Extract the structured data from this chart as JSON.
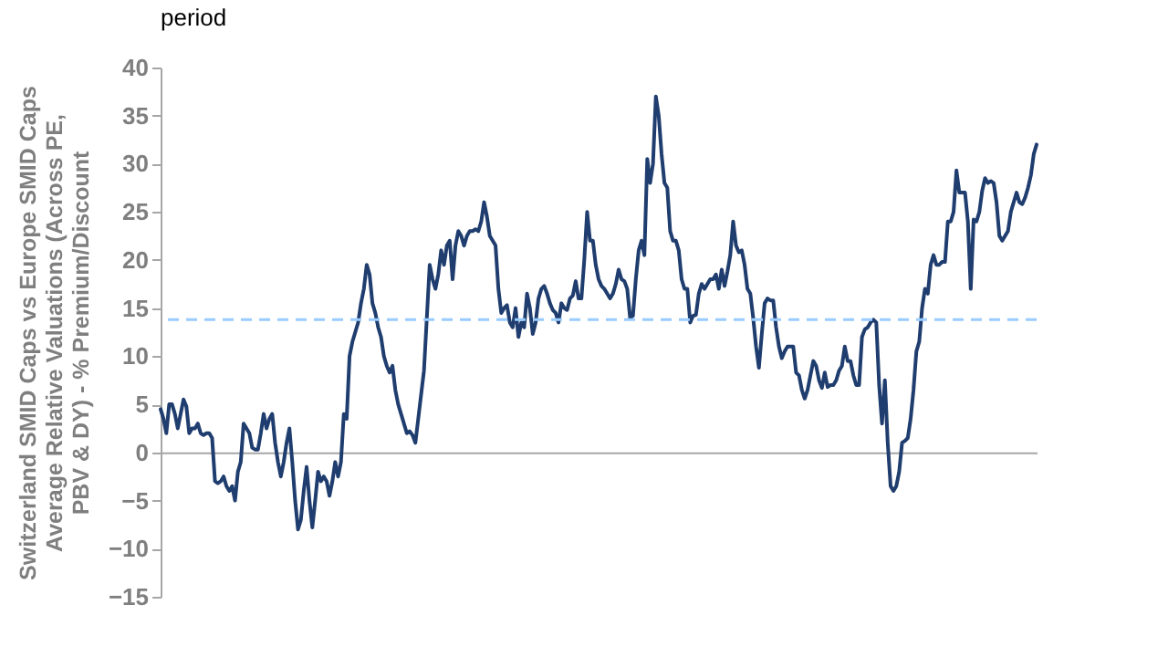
{
  "chart_data": {
    "type": "line",
    "title": "period",
    "ylabel": "Switzerland SMID Caps vs Europe SMID Caps Average Relative Valuations (Across PE, PBV & DY) - % Premium/Discount",
    "categories": [
      null,
      null,
      null,
      null,
      null,
      null,
      null,
      null,
      null,
      null,
      null,
      null,
      null,
      null,
      null,
      null,
      null,
      null,
      null,
      null,
      null,
      null,
      null,
      null,
      null,
      null,
      null,
      null,
      null,
      null,
      null,
      null,
      null,
      null,
      null,
      null,
      null,
      null,
      null,
      null,
      null,
      null,
      null,
      null,
      null,
      null,
      null,
      null,
      null,
      null,
      null,
      null,
      null,
      null,
      null,
      null,
      null,
      null,
      null,
      null,
      null,
      null,
      null,
      null,
      null,
      null,
      null,
      null,
      null,
      null,
      null,
      null,
      null,
      null,
      null,
      null,
      null,
      null,
      null,
      null,
      null,
      null,
      null,
      null,
      null,
      null,
      null,
      null,
      null,
      null,
      null,
      null,
      null,
      null,
      null,
      null,
      null,
      null,
      null,
      null,
      null,
      null,
      null,
      null,
      null,
      null,
      null,
      null,
      null,
      null,
      null,
      null,
      null,
      null,
      null,
      null,
      null,
      null,
      null,
      null,
      null,
      null,
      null,
      null,
      null,
      null,
      null,
      null,
      null,
      null,
      null,
      null,
      null,
      null,
      null,
      null,
      null,
      null,
      null,
      null,
      null,
      null,
      null,
      null,
      null,
      null,
      null,
      null,
      null,
      null,
      null,
      null,
      null,
      null,
      null,
      null,
      null,
      null,
      null,
      null,
      null,
      null,
      null,
      null,
      null,
      null,
      null,
      null,
      null,
      null,
      null,
      null,
      null,
      null,
      null,
      null,
      null,
      null,
      null,
      null,
      null,
      null,
      null,
      null,
      null,
      null,
      null,
      null,
      null,
      null,
      null,
      null,
      null,
      null,
      null,
      null,
      null,
      null,
      null,
      null,
      null,
      null,
      null,
      null,
      null,
      null,
      null,
      null,
      null,
      null,
      null,
      null,
      null,
      null,
      null,
      null,
      null,
      null,
      null,
      null,
      null,
      null,
      null,
      null,
      null,
      null,
      null,
      null,
      null,
      null,
      null,
      null,
      null,
      null,
      null,
      null,
      null,
      null,
      null,
      null,
      null,
      null,
      null,
      null,
      null,
      null,
      null,
      null,
      null,
      null,
      null,
      null,
      null,
      null,
      null,
      null,
      null,
      null,
      null,
      null,
      null,
      null,
      null,
      null,
      null,
      null,
      null,
      null,
      null,
      null,
      null,
      null,
      null,
      null,
      null,
      null,
      null,
      null,
      null,
      null,
      null,
      null,
      null,
      null,
      null,
      null,
      null,
      null,
      null,
      null,
      null,
      null,
      null,
      null,
      null,
      null,
      null,
      null,
      null,
      null,
      null,
      null,
      null,
      null,
      null,
      null,
      null
    ],
    "series": [
      {
        "color": "#1f3d6e",
        "values": [
          4.5,
          3.5,
          2,
          5,
          5,
          4,
          2.5,
          4,
          5.5,
          4.8,
          2,
          2.5,
          2.5,
          3,
          2,
          1.8,
          2,
          2,
          1.5,
          -3,
          -3.2,
          -3,
          -2.5,
          -3.5,
          -4,
          -3.5,
          -5,
          -2,
          -1,
          3,
          2.5,
          2,
          0.5,
          0.3,
          0.3,
          2,
          4,
          2.5,
          3.5,
          4,
          1,
          -1,
          -2.5,
          -1,
          1,
          2.5,
          -1,
          -5,
          -8,
          -7,
          -4,
          -1.5,
          -5,
          -7.8,
          -5,
          -2,
          -3,
          -2.5,
          -3,
          -4.5,
          -3,
          -1,
          -2.5,
          -1,
          4,
          3.5,
          10,
          11.5,
          12.5,
          13.5,
          15.5,
          17,
          19.5,
          18.5,
          15.5,
          14.5,
          13,
          12,
          10,
          9,
          8.3,
          9,
          6.5,
          5,
          4,
          3,
          2,
          2.2,
          1.8,
          1,
          3.5,
          6,
          8.5,
          14,
          19.5,
          18,
          17,
          18.5,
          21,
          19.5,
          21.5,
          22,
          18,
          21.5,
          23,
          22.5,
          21.5,
          22.5,
          23,
          23,
          23.2,
          23,
          24,
          26,
          24.5,
          22.5,
          22,
          21.5,
          17,
          14.5,
          15,
          15.3,
          13.5,
          13,
          15,
          12,
          13.5,
          13,
          16.5,
          15,
          12.3,
          13.5,
          16,
          17,
          17.3,
          16.5,
          15.5,
          14.8,
          14.5,
          13.5,
          15.5,
          15,
          14.8,
          16,
          16.3,
          17.8,
          16,
          16,
          20,
          25,
          22,
          22,
          19.5,
          18,
          17.3,
          17,
          16.5,
          16,
          16.5,
          17.5,
          19,
          18,
          17.8,
          17,
          14,
          14.2,
          18,
          21,
          22,
          20.5,
          30.5,
          28,
          30,
          37,
          35,
          31,
          28,
          27.5,
          23,
          22,
          22,
          21,
          18,
          17,
          17,
          13.5,
          14.2,
          14.3,
          16.5,
          17.5,
          17,
          17.5,
          18,
          18,
          18.5,
          17,
          19,
          17.3,
          18.8,
          20.5,
          24,
          21.5,
          20.8,
          21,
          19.5,
          17,
          16.5,
          14,
          11,
          8.8,
          12.3,
          15.5,
          16,
          15.8,
          15.8,
          13,
          11,
          9.8,
          10.5,
          11,
          11,
          11,
          8.3,
          8,
          6.5,
          5.6,
          6.5,
          8,
          9.5,
          9,
          7.5,
          6.7,
          8.3,
          6.8,
          7,
          7,
          7.5,
          8.5,
          9,
          11,
          9.5,
          9.5,
          8,
          7,
          7,
          12,
          12.8,
          13,
          13.5,
          13.8,
          13.5,
          7,
          3,
          7.5,
          1,
          -3.5,
          -4,
          -3.5,
          -2,
          1,
          1.2,
          1.5,
          3.5,
          6.5,
          10.5,
          11.5,
          15,
          17,
          16.5,
          19.5,
          20.5,
          19.5,
          19.5,
          19.8,
          19.8,
          24,
          24,
          25,
          29.3,
          27,
          27,
          27,
          24,
          17,
          24.2,
          24,
          25,
          27.2,
          28.5,
          28,
          28.2,
          28,
          26,
          22.5,
          22,
          22.5,
          23,
          25,
          26,
          27,
          26,
          25.8,
          26.5,
          27.5,
          28.8,
          31,
          32
        ]
      }
    ],
    "ylim": [
      -15,
      40
    ],
    "yticks": [
      -15,
      -10,
      -5,
      0,
      5,
      10,
      15,
      20,
      25,
      30,
      35,
      40
    ],
    "ref_lines": [
      {
        "axis": "y",
        "value": 13.8,
        "color": "#99ccff",
        "line_style": "dashed"
      }
    ],
    "tick_labels": "y"
  }
}
